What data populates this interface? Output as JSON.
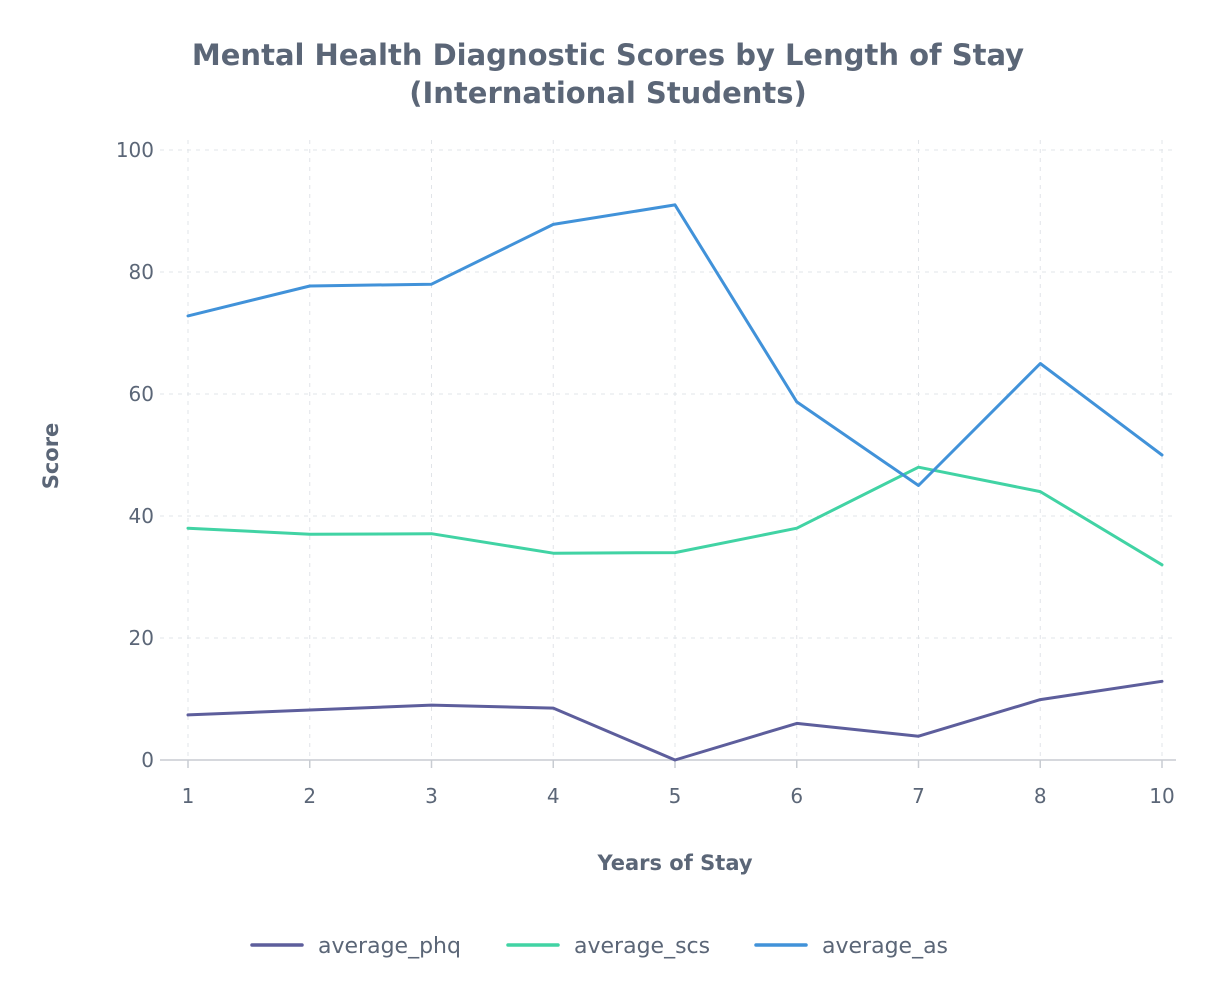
{
  "chart_data": {
    "type": "line",
    "title": "Mental Health Diagnostic Scores by Length of Stay",
    "subtitle": "(International Students)",
    "xlabel": "Years of Stay",
    "ylabel": "Score",
    "x": [
      1,
      2,
      3,
      4,
      5,
      6,
      7,
      8,
      10
    ],
    "x_ticks": [
      "1",
      "2",
      "3",
      "4",
      "5",
      "6",
      "7",
      "8",
      "10"
    ],
    "y_ticks": [
      0,
      20,
      40,
      60,
      80,
      100
    ],
    "ylim": [
      0,
      100
    ],
    "grid": true,
    "legend_position": "bottom",
    "series": [
      {
        "name": "average_phq",
        "color": "#5d5e9c",
        "values": [
          7.4,
          8.2,
          9.0,
          8.5,
          0,
          6.0,
          3.9,
          9.9,
          12.9
        ]
      },
      {
        "name": "average_scs",
        "color": "#41d3a4",
        "values": [
          38.0,
          37.0,
          37.1,
          33.9,
          34.0,
          38.0,
          48.0,
          44.0,
          32.0
        ]
      },
      {
        "name": "average_as",
        "color": "#4192d9",
        "values": [
          72.8,
          77.7,
          78.0,
          87.8,
          91.0,
          58.7,
          45.0,
          65.0,
          50.0
        ]
      }
    ]
  }
}
